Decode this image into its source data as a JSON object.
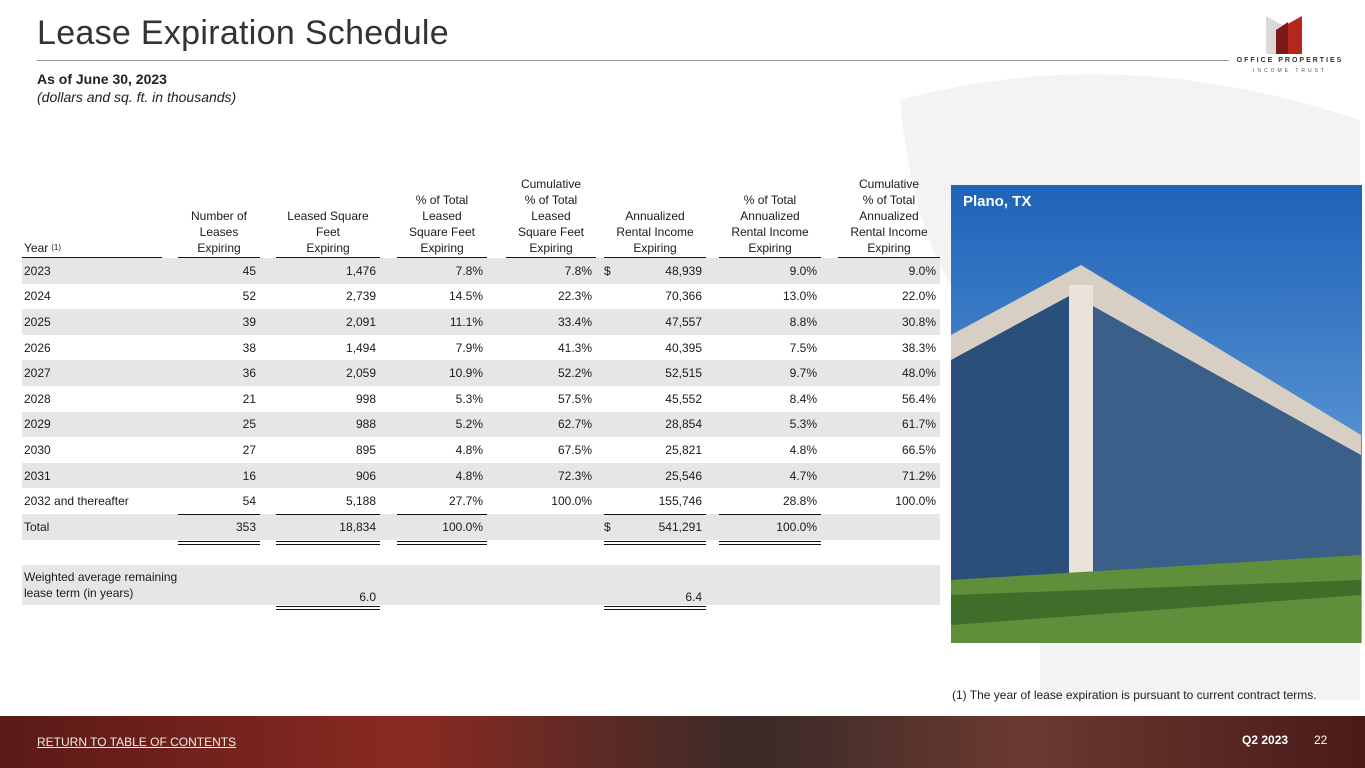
{
  "header": {
    "title": "Lease Expiration Schedule",
    "subtitle": "As of June 30, 2023",
    "note": "(dollars and sq. ft. in thousands)"
  },
  "logo": {
    "line1": "OFFICE PROPERTIES",
    "line2": "INCOME TRUST"
  },
  "table": {
    "columns": [
      "Year",
      "Number of\nLeases\nExpiring",
      "Leased Square\nFeet\nExpiring",
      "% of Total\nLeased\nSquare Feet\nExpiring",
      "Cumulative\n% of Total\nLeased\nSquare Feet\nExpiring",
      "Annualized\nRental Income\nExpiring",
      "% of Total\nAnnualized\nRental Income\nExpiring",
      "Cumulative\n% of Total\nAnnualized\nRental Income\nExpiring"
    ],
    "year_footnote": "(1)",
    "dollar_sign": "$",
    "rows": [
      [
        "2023",
        "45",
        "1,476",
        "7.8%",
        "7.8%",
        "48,939",
        "9.0%",
        "9.0%"
      ],
      [
        "2024",
        "52",
        "2,739",
        "14.5%",
        "22.3%",
        "70,366",
        "13.0%",
        "22.0%"
      ],
      [
        "2025",
        "39",
        "2,091",
        "11.1%",
        "33.4%",
        "47,557",
        "8.8%",
        "30.8%"
      ],
      [
        "2026",
        "38",
        "1,494",
        "7.9%",
        "41.3%",
        "40,395",
        "7.5%",
        "38.3%"
      ],
      [
        "2027",
        "36",
        "2,059",
        "10.9%",
        "52.2%",
        "52,515",
        "9.7%",
        "48.0%"
      ],
      [
        "2028",
        "21",
        "998",
        "5.3%",
        "57.5%",
        "45,552",
        "8.4%",
        "56.4%"
      ],
      [
        "2029",
        "25",
        "988",
        "5.2%",
        "62.7%",
        "28,854",
        "5.3%",
        "61.7%"
      ],
      [
        "2030",
        "27",
        "895",
        "4.8%",
        "67.5%",
        "25,821",
        "4.8%",
        "66.5%"
      ],
      [
        "2031",
        "16",
        "906",
        "4.8%",
        "72.3%",
        "25,546",
        "4.7%",
        "71.2%"
      ],
      [
        "2032 and thereafter",
        "54",
        "5,188",
        "27.7%",
        "100.0%",
        "155,746",
        "28.8%",
        "100.0%"
      ]
    ],
    "total": [
      "Total",
      "353",
      "18,834",
      "100.0%",
      null,
      "541,291",
      "100.0%",
      null
    ],
    "weighted": {
      "label": "Weighted average remaining\nlease term (in years)",
      "sqft": "6.0",
      "rent": "6.4"
    }
  },
  "photo": {
    "caption": "Plano, TX"
  },
  "footnote": "(1)  The year of lease expiration is pursuant to current contract terms.",
  "footer": {
    "link": "RETURN TO TABLE OF CONTENTS",
    "quarter": "Q2 2023",
    "page": "22"
  }
}
